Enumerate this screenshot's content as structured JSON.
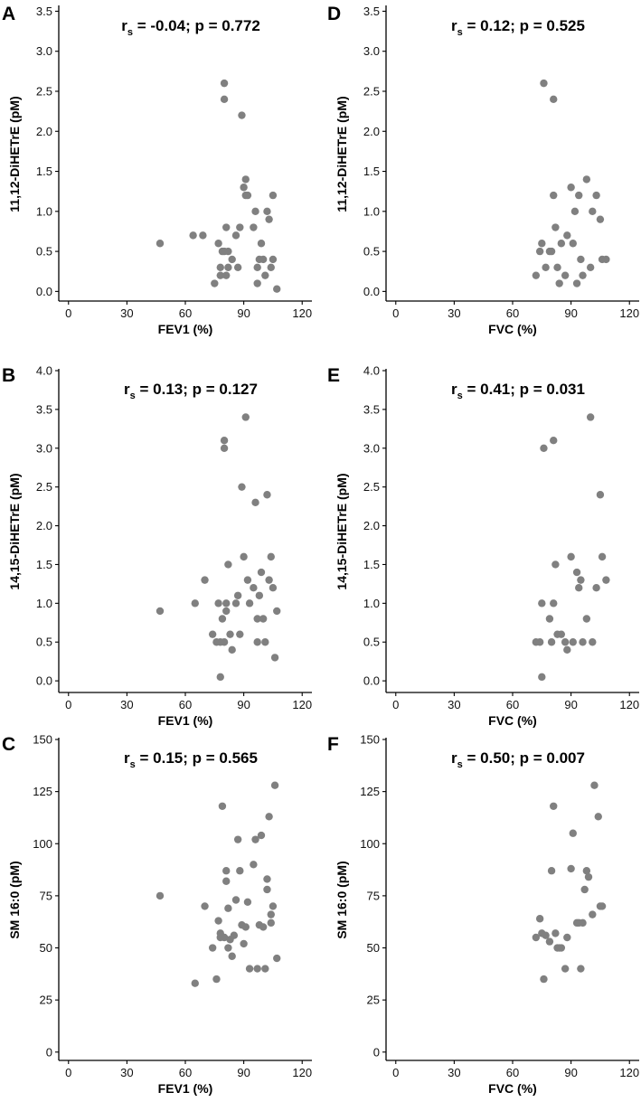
{
  "chart_data": [
    {
      "panel": "A",
      "type": "scatter",
      "stat": {
        "r_base": "r",
        "r_sub": "s",
        "text": " = -0.04; p = 0.772"
      },
      "xlabel": "FEV1 (%)",
      "ylabel": "11,12-DiHETrE (pM)",
      "xlim": [
        -5,
        125
      ],
      "ylim": [
        -0.12,
        3.55
      ],
      "xticks": [
        0,
        30,
        60,
        90,
        120
      ],
      "xtick_labels": [
        "0",
        "30",
        "60",
        "90",
        "120"
      ],
      "yticks": [
        0,
        0.5,
        1,
        1.5,
        2,
        2.5,
        3,
        3.5
      ],
      "ytick_labels": [
        "0.0",
        "0.5",
        "1.0",
        "1.5",
        "2.0",
        "2.5",
        "3.0",
        "3.5"
      ],
      "point_color": "#808080",
      "x": [
        47,
        64,
        69,
        75,
        77,
        78,
        78,
        79,
        80,
        80,
        80,
        81,
        81,
        82,
        82,
        84,
        86,
        87,
        88,
        89,
        90,
        91,
        91,
        92,
        95,
        96,
        97,
        97,
        98,
        99,
        100,
        101,
        102,
        103,
        104,
        105,
        105,
        107
      ],
      "y": [
        0.6,
        0.7,
        0.7,
        0.1,
        0.6,
        0.3,
        0.2,
        0.5,
        2.6,
        2.4,
        0.5,
        0.8,
        0.2,
        0.5,
        0.3,
        0.4,
        0.7,
        0.3,
        0.8,
        2.2,
        1.3,
        1.2,
        1.4,
        1.2,
        0.8,
        1.0,
        0.3,
        0.1,
        0.4,
        0.6,
        0.4,
        0.2,
        1.0,
        0.9,
        0.3,
        1.2,
        0.4,
        0.03
      ]
    },
    {
      "panel": "B",
      "type": "scatter",
      "stat": {
        "r_base": "r",
        "r_sub": "s",
        "text": " = 0.13; p = 0.127"
      },
      "xlabel": "FEV1 (%)",
      "ylabel": "14,15-DiHETrE (pM)",
      "xlim": [
        -5,
        125
      ],
      "ylim": [
        -0.15,
        4.0
      ],
      "xticks": [
        0,
        30,
        60,
        90,
        120
      ],
      "xtick_labels": [
        "0",
        "30",
        "60",
        "90",
        "120"
      ],
      "yticks": [
        0,
        0.5,
        1,
        1.5,
        2,
        2.5,
        3,
        3.5,
        4
      ],
      "ytick_labels": [
        "0.0",
        "0.5",
        "1.0",
        "1.5",
        "2.0",
        "2.5",
        "3.0",
        "3.5",
        "4.0"
      ],
      "point_color": "#808080",
      "x": [
        47,
        65,
        70,
        74,
        76,
        77,
        78,
        78,
        79,
        80,
        80,
        80,
        81,
        81,
        82,
        83,
        84,
        86,
        87,
        88,
        89,
        90,
        91,
        92,
        93,
        95,
        96,
        97,
        97,
        98,
        99,
        100,
        101,
        102,
        103,
        104,
        105,
        106,
        107
      ],
      "y": [
        0.9,
        1.0,
        1.3,
        0.6,
        0.5,
        1.0,
        0.05,
        0.5,
        0.8,
        3.1,
        3.0,
        0.5,
        1.0,
        0.9,
        1.5,
        0.6,
        0.4,
        1.0,
        1.1,
        0.6,
        2.5,
        1.6,
        3.4,
        1.3,
        1.0,
        1.2,
        2.3,
        0.5,
        0.8,
        1.1,
        1.4,
        0.8,
        0.5,
        2.4,
        1.3,
        1.6,
        1.2,
        0.3,
        0.9
      ]
    },
    {
      "panel": "C",
      "type": "scatter",
      "stat": {
        "r_base": "r",
        "r_sub": "s",
        "text": " = 0.15; p = 0.565"
      },
      "xlabel": "FEV1 (%)",
      "ylabel": "SM 16:0 (pM)",
      "xlim": [
        -5,
        125
      ],
      "ylim": [
        -4,
        150
      ],
      "xticks": [
        0,
        30,
        60,
        90,
        120
      ],
      "xtick_labels": [
        "0",
        "30",
        "60",
        "90",
        "120"
      ],
      "yticks": [
        0,
        25,
        50,
        75,
        100,
        125,
        150
      ],
      "ytick_labels": [
        "0",
        "25",
        "50",
        "75",
        "100",
        "125",
        "150"
      ],
      "point_color": "#808080",
      "x": [
        47,
        65,
        70,
        74,
        76,
        77,
        78,
        78,
        79,
        80,
        81,
        81,
        82,
        82,
        83,
        84,
        85,
        86,
        87,
        88,
        89,
        90,
        91,
        92,
        93,
        95,
        96,
        97,
        98,
        99,
        100,
        101,
        102,
        102,
        103,
        104,
        104,
        105,
        106,
        107
      ],
      "y": [
        75,
        33,
        70,
        50,
        35,
        63,
        57,
        55,
        118,
        55,
        87,
        82,
        69,
        50,
        54,
        46,
        56,
        73,
        102,
        87,
        61,
        52,
        60,
        72,
        40,
        90,
        102,
        40,
        61,
        104,
        60,
        40,
        83,
        78,
        113,
        62,
        66,
        70,
        128,
        45
      ]
    },
    {
      "panel": "D",
      "type": "scatter",
      "stat": {
        "r_base": "r",
        "r_sub": "s",
        "text": " = 0.12; p = 0.525"
      },
      "xlabel": "FVC (%)",
      "ylabel": "11,12-DiHETrE (pM)",
      "xlim": [
        -5,
        125
      ],
      "ylim": [
        -0.12,
        3.55
      ],
      "xticks": [
        0,
        30,
        60,
        90,
        120
      ],
      "xtick_labels": [
        "0",
        "30",
        "60",
        "90",
        "120"
      ],
      "yticks": [
        0,
        0.5,
        1,
        1.5,
        2,
        2.5,
        3,
        3.5
      ],
      "ytick_labels": [
        "0.0",
        "0.5",
        "1.0",
        "1.5",
        "2.0",
        "2.5",
        "3.0",
        "3.5"
      ],
      "point_color": "#808080",
      "x": [
        72,
        74,
        75,
        76,
        77,
        79,
        80,
        81,
        81,
        82,
        83,
        84,
        85,
        87,
        88,
        90,
        91,
        92,
        93,
        94,
        95,
        96,
        98,
        100,
        101,
        103,
        105,
        106,
        108
      ],
      "y": [
        0.2,
        0.5,
        0.6,
        2.6,
        0.3,
        0.5,
        0.5,
        1.2,
        2.4,
        0.8,
        0.3,
        0.1,
        0.6,
        0.2,
        0.7,
        1.3,
        0.6,
        1.0,
        0.1,
        1.2,
        0.4,
        0.2,
        1.4,
        0.3,
        1.0,
        1.2,
        0.9,
        0.4,
        0.4
      ]
    },
    {
      "panel": "E",
      "type": "scatter",
      "stat": {
        "r_base": "r",
        "r_sub": "s",
        "text": " = 0.41; p = 0.031"
      },
      "xlabel": "FVC (%)",
      "ylabel": "14,15-DiHETrE (pM)",
      "xlim": [
        -5,
        125
      ],
      "ylim": [
        -0.15,
        4.0
      ],
      "xticks": [
        0,
        30,
        60,
        90,
        120
      ],
      "xtick_labels": [
        "0",
        "30",
        "60",
        "90",
        "120"
      ],
      "yticks": [
        0,
        0.5,
        1,
        1.5,
        2,
        2.5,
        3,
        3.5,
        4
      ],
      "ytick_labels": [
        "0.0",
        "0.5",
        "1.0",
        "1.5",
        "2.0",
        "2.5",
        "3.0",
        "3.5",
        "4.0"
      ],
      "point_color": "#808080",
      "x": [
        72,
        74,
        75,
        75,
        76,
        79,
        80,
        81,
        81,
        82,
        83,
        85,
        87,
        88,
        90,
        91,
        93,
        94,
        95,
        96,
        98,
        100,
        101,
        103,
        105,
        106,
        108
      ],
      "y": [
        0.5,
        0.5,
        1.0,
        0.05,
        3.0,
        0.8,
        0.5,
        3.1,
        1.0,
        1.5,
        0.6,
        0.6,
        0.5,
        0.4,
        1.6,
        0.5,
        1.4,
        1.2,
        1.3,
        0.5,
        0.8,
        3.4,
        0.5,
        1.2,
        2.4,
        1.6,
        1.3
      ]
    },
    {
      "panel": "F",
      "type": "scatter",
      "stat": {
        "r_base": "r",
        "r_sub": "s",
        "text": " = 0.50; p = 0.007"
      },
      "xlabel": "FVC (%)",
      "ylabel": "SM 16:0 (pM)",
      "xlim": [
        -5,
        125
      ],
      "ylim": [
        -4,
        150
      ],
      "xticks": [
        0,
        30,
        60,
        90,
        120
      ],
      "xtick_labels": [
        "0",
        "30",
        "60",
        "90",
        "120"
      ],
      "yticks": [
        0,
        25,
        50,
        75,
        100,
        125,
        150
      ],
      "ytick_labels": [
        "0",
        "25",
        "50",
        "75",
        "100",
        "125",
        "150"
      ],
      "point_color": "#808080",
      "x": [
        72,
        74,
        75,
        76,
        77,
        79,
        80,
        81,
        82,
        83,
        84,
        85,
        87,
        88,
        90,
        91,
        93,
        94,
        95,
        96,
        97,
        98,
        99,
        101,
        102,
        104,
        105,
        106
      ],
      "y": [
        55,
        64,
        57,
        35,
        56,
        53,
        87,
        118,
        57,
        50,
        50,
        50,
        40,
        55,
        88,
        105,
        62,
        62,
        40,
        62,
        78,
        87,
        84,
        66,
        128,
        113,
        70,
        70
      ]
    }
  ]
}
